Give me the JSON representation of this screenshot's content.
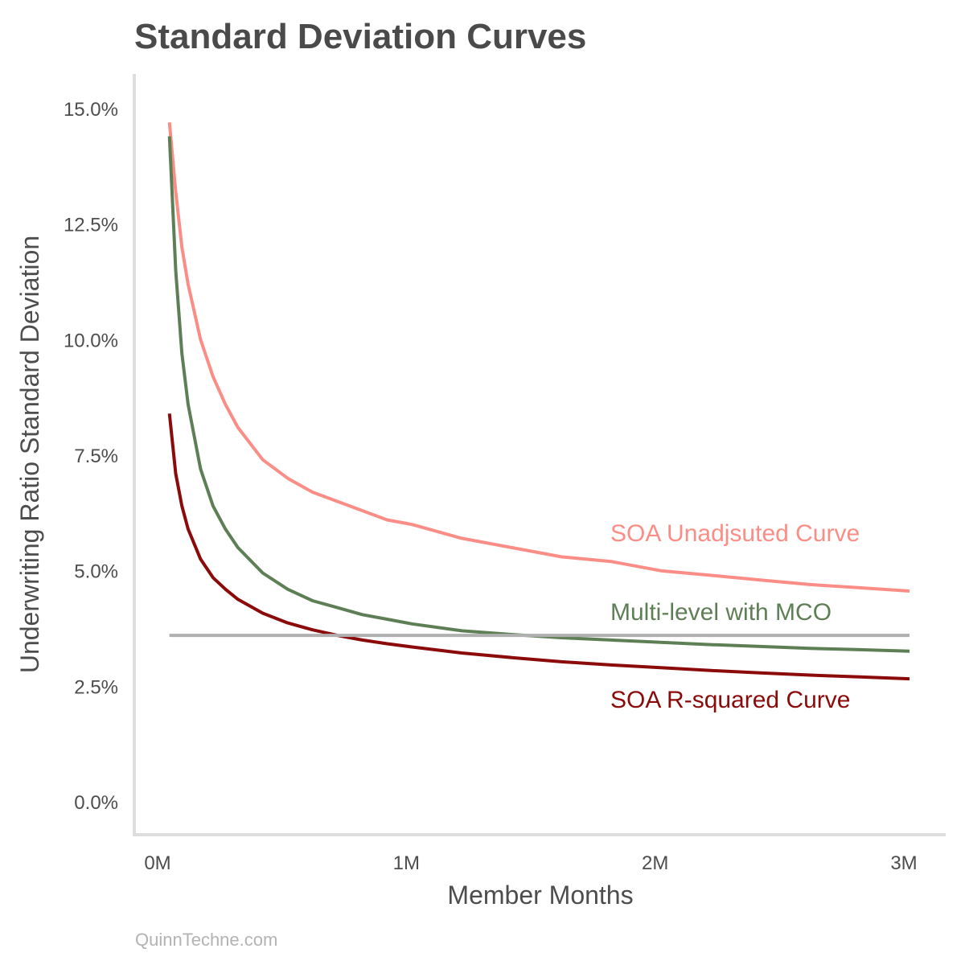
{
  "chart_data": {
    "type": "line",
    "title": "Standard Deviation Curves",
    "xlabel": "Member Months",
    "ylabel": "Underwriting Ratio Standard Deviation",
    "caption": "QuinnTechne.com",
    "xlim": [
      0,
      3000000
    ],
    "ylim": [
      0,
      0.15
    ],
    "x_ticks": [
      {
        "value": 0,
        "label": "0M"
      },
      {
        "value": 1000000,
        "label": "1M"
      },
      {
        "value": 2000000,
        "label": "2M"
      },
      {
        "value": 3000000,
        "label": "3M"
      }
    ],
    "y_ticks": [
      {
        "value": 0,
        "label": "0.0%"
      },
      {
        "value": 0.025,
        "label": "2.5%"
      },
      {
        "value": 0.05,
        "label": "5.0%"
      },
      {
        "value": 0.075,
        "label": "7.5%"
      },
      {
        "value": 0.1,
        "label": "10.0%"
      },
      {
        "value": 0.125,
        "label": "12.5%"
      },
      {
        "value": 0.15,
        "label": "15.0%"
      }
    ],
    "grid": false,
    "legend": "direct labels at right",
    "series": [
      {
        "name": "SOA Unadjsuted Curve",
        "color": "#fa8e86",
        "x": [
          25000,
          50000,
          75000,
          100000,
          150000,
          200000,
          250000,
          300000,
          400000,
          500000,
          600000,
          700000,
          800000,
          900000,
          1000000,
          1200000,
          1400000,
          1600000,
          1800000,
          2000000,
          2200000,
          2400000,
          2600000,
          2800000,
          3000000
        ],
        "values": [
          0.147,
          0.132,
          0.12,
          0.112,
          0.1,
          0.092,
          0.086,
          0.081,
          0.074,
          0.07,
          0.067,
          0.065,
          0.063,
          0.061,
          0.06,
          0.057,
          0.055,
          0.053,
          0.052,
          0.05,
          0.049,
          0.048,
          0.047,
          0.0463,
          0.0456
        ]
      },
      {
        "name": "Multi-level with MCO",
        "color": "#5e7f55",
        "x": [
          25000,
          50000,
          75000,
          100000,
          150000,
          200000,
          250000,
          300000,
          400000,
          500000,
          600000,
          700000,
          800000,
          900000,
          1000000,
          1200000,
          1400000,
          1600000,
          1800000,
          2000000,
          2200000,
          2400000,
          2600000,
          2800000,
          3000000
        ],
        "values": [
          0.144,
          0.115,
          0.097,
          0.086,
          0.072,
          0.064,
          0.059,
          0.055,
          0.0495,
          0.046,
          0.0435,
          0.042,
          0.0405,
          0.0395,
          0.0385,
          0.037,
          0.0362,
          0.0355,
          0.035,
          0.0345,
          0.034,
          0.0336,
          0.0332,
          0.0329,
          0.0326
        ]
      },
      {
        "name": "SOA R-squared Curve",
        "color": "#8b0a0a",
        "x": [
          25000,
          50000,
          75000,
          100000,
          150000,
          200000,
          250000,
          300000,
          400000,
          500000,
          600000,
          700000,
          800000,
          900000,
          1000000,
          1200000,
          1400000,
          1600000,
          1800000,
          2000000,
          2200000,
          2400000,
          2600000,
          2800000,
          3000000
        ],
        "values": [
          0.084,
          0.071,
          0.064,
          0.059,
          0.0525,
          0.0485,
          0.046,
          0.0438,
          0.0408,
          0.0387,
          0.0372,
          0.036,
          0.035,
          0.0342,
          0.0335,
          0.0322,
          0.0312,
          0.0303,
          0.0296,
          0.029,
          0.0284,
          0.0279,
          0.0274,
          0.027,
          0.0266
        ]
      },
      {
        "name": "",
        "color": "#b0b0b0",
        "x": [
          25000,
          3000000
        ],
        "values": [
          0.036,
          0.036
        ]
      }
    ]
  }
}
